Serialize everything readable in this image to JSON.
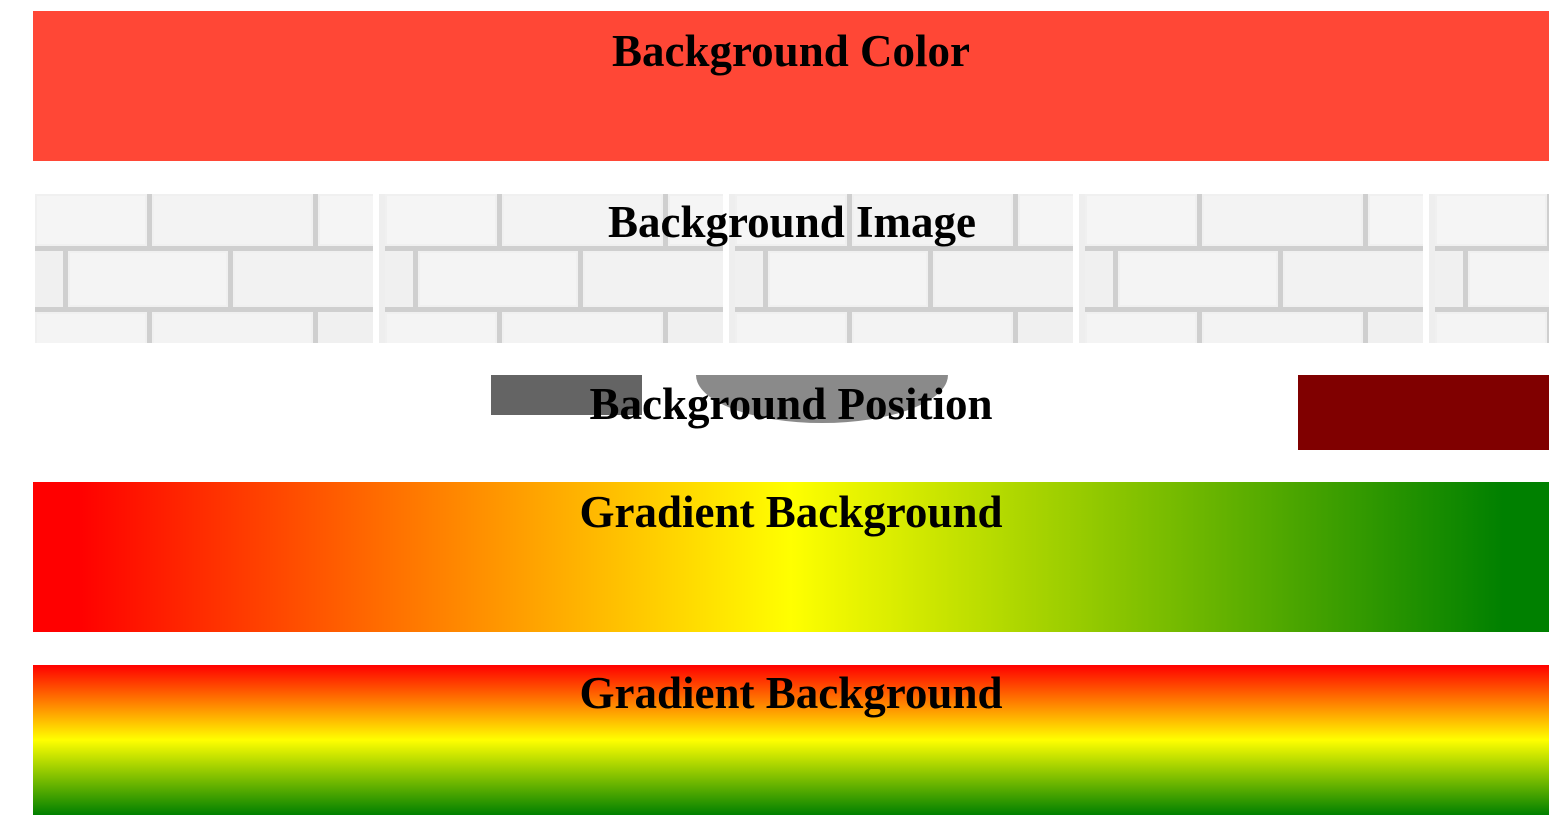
{
  "sections": {
    "background_color": {
      "title": "Background Color",
      "color": "#ff4736"
    },
    "background_image": {
      "title": "Background Image",
      "image": "white-brick-wall-texture"
    },
    "background_position": {
      "title": "Background Position",
      "accent_color": "#800000",
      "shape_colors": [
        "#646464",
        "#8a8a8a"
      ]
    },
    "gradient_horizontal": {
      "title": "Gradient Background",
      "colors": [
        "#ff0000",
        "#ffff00",
        "#008000"
      ]
    },
    "gradient_vertical": {
      "title": "Gradient Background",
      "colors": [
        "#ff0000",
        "#ffff00",
        "#008000"
      ]
    }
  }
}
